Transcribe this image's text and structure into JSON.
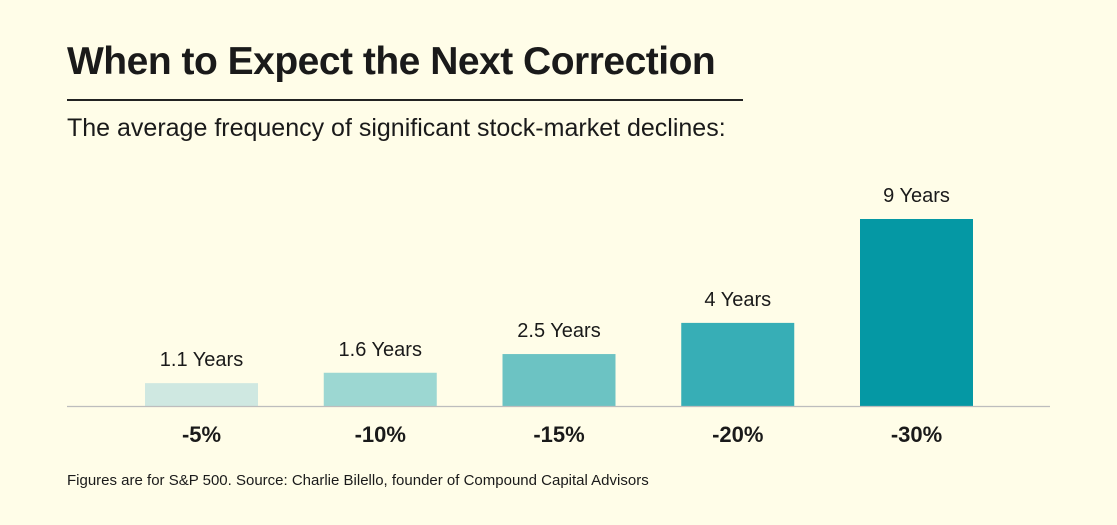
{
  "chart_data": {
    "type": "bar",
    "title": "When to Expect the Next Correction",
    "subtitle": "The average frequency of significant stock-market declines:",
    "categories": [
      "-5%",
      "-10%",
      "-15%",
      "-20%",
      "-30%"
    ],
    "values": [
      1.1,
      1.6,
      2.5,
      4,
      9
    ],
    "value_labels": [
      "1.1 Years",
      "1.6 Years",
      "2.5 Years",
      "4 Years",
      "9 Years"
    ],
    "bar_colors": [
      "#cfe8e1",
      "#9cd7d2",
      "#6cc3c3",
      "#37aeb6",
      "#0598a4"
    ],
    "xlabel": "",
    "ylabel": "",
    "axis_color": "#bdbdbd",
    "grid": false,
    "legend": "none"
  },
  "source": "Figures are for S&P 500. Source: Charlie Bilello, founder of Compound Capital Advisors"
}
